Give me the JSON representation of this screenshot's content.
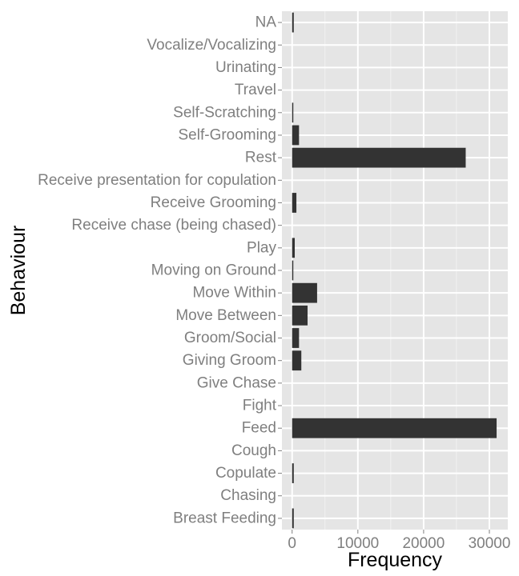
{
  "chart_data": {
    "type": "bar",
    "orientation": "horizontal",
    "xlabel": "Frequency",
    "ylabel": "Behaviour",
    "categories": [
      "Breast Feeding",
      "Chasing",
      "Copulate",
      "Cough",
      "Feed",
      "Fight",
      "Give Chase",
      "Giving Groom",
      "Groom/Social",
      "Move Between",
      "Move Within",
      "Moving on Ground",
      "Play",
      "Receive chase (being chased)",
      "Receive Grooming",
      "Receive presentation for copulation",
      "Rest",
      "Self-Grooming",
      "Self-Scratching",
      "Travel",
      "Urinating",
      "Vocalize/Vocalizing",
      "NA"
    ],
    "values": [
      250,
      0,
      250,
      0,
      31100,
      0,
      0,
      1400,
      1050,
      2350,
      3800,
      150,
      400,
      0,
      650,
      0,
      26400,
      1050,
      150,
      0,
      0,
      0,
      250
    ],
    "xlim": [
      -1550,
      32800
    ],
    "xticks": [
      0,
      10000,
      20000,
      30000
    ],
    "xtick_labels": [
      "0",
      "10000",
      "20000",
      "30000"
    ],
    "grid": true,
    "colors": {
      "bar": "#333333",
      "panel": "#e5e5e5",
      "grid_major": "#ffffff",
      "grid_minor": "#f2f2f2",
      "tick_label": "#7f7f7f",
      "axis_title": "#000000"
    }
  }
}
